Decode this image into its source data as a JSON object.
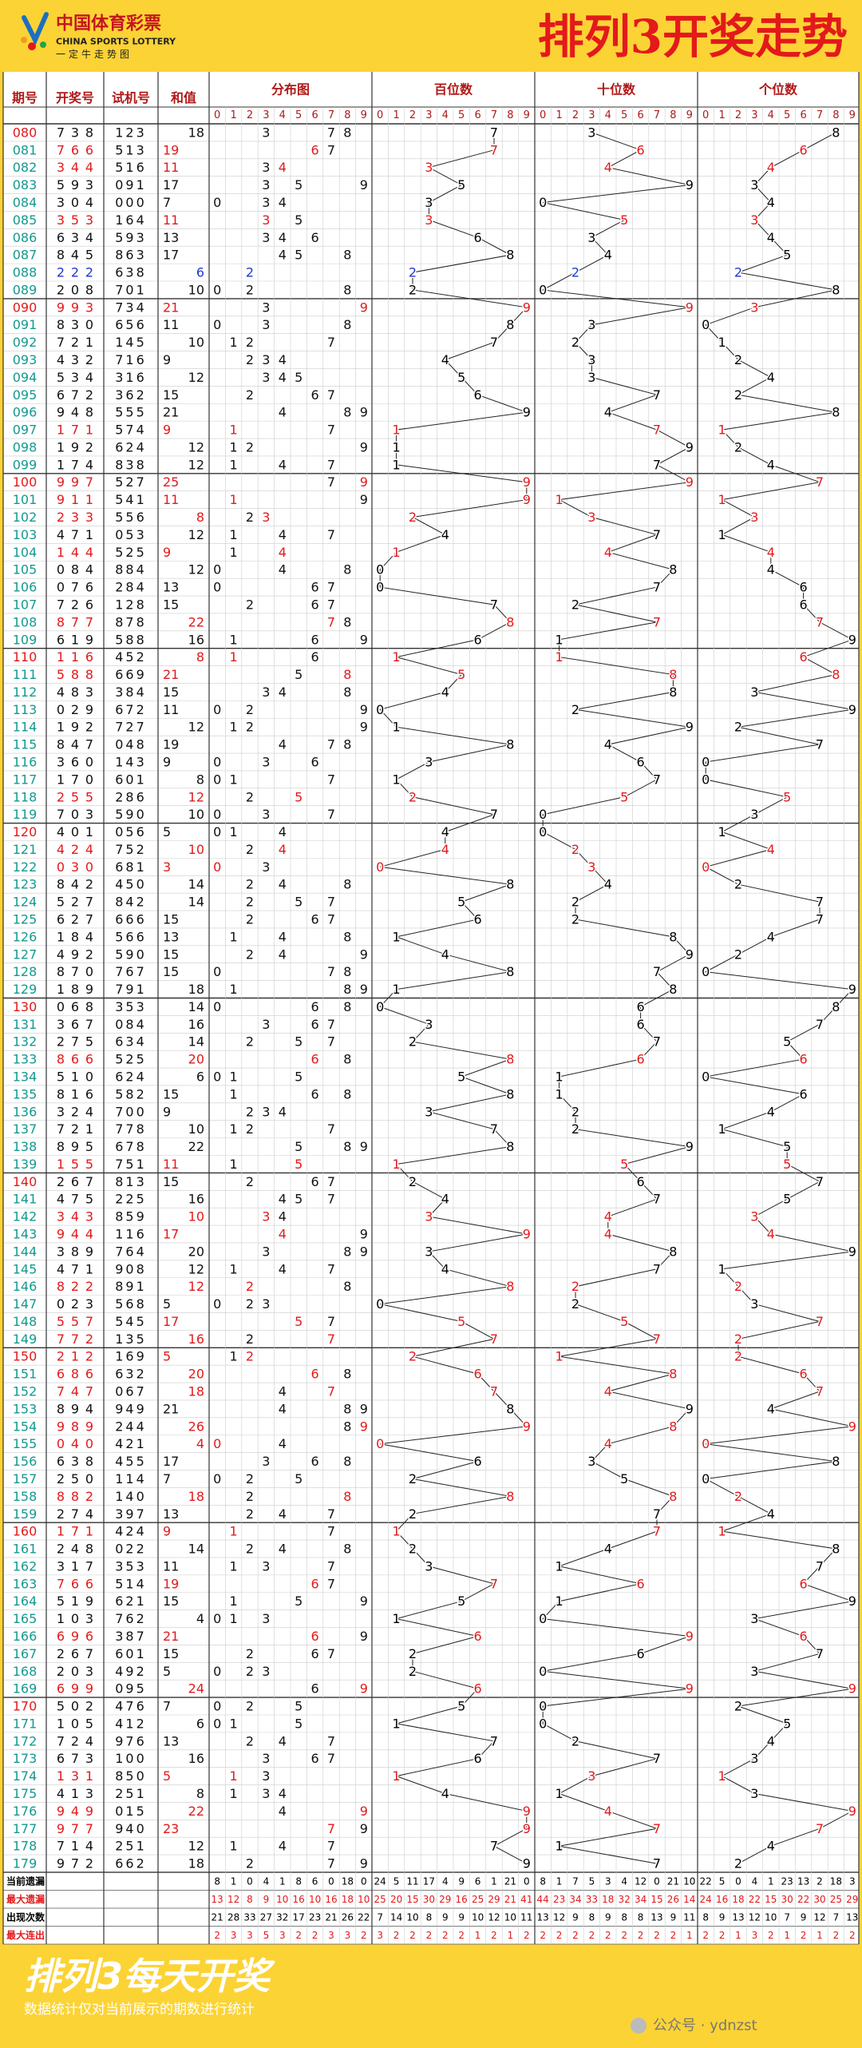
{
  "header": {
    "logo_cn": "中国体育彩票",
    "logo_en": "CHINA SPORTS LOTTERY",
    "logo_sub": "一定牛走势图",
    "title": "排列3开奖走势"
  },
  "table": {
    "columns": [
      "期号",
      "开奖号",
      "试机号",
      "和值",
      "分布图",
      "百位数",
      "十位数",
      "个位数"
    ],
    "digits": [
      0,
      1,
      2,
      3,
      4,
      5,
      6,
      7,
      8,
      9
    ],
    "rows": [
      {
        "issue": "080",
        "draw": [
          7,
          3,
          8
        ],
        "test": "123",
        "sum": 18
      },
      {
        "issue": "081",
        "draw": [
          7,
          6,
          6
        ],
        "test": "513",
        "sum": 19
      },
      {
        "issue": "082",
        "draw": [
          3,
          4,
          4
        ],
        "test": "516",
        "sum": 11
      },
      {
        "issue": "083",
        "draw": [
          5,
          9,
          3
        ],
        "test": "091",
        "sum": 17
      },
      {
        "issue": "084",
        "draw": [
          3,
          0,
          4
        ],
        "test": "000",
        "sum": 7
      },
      {
        "issue": "085",
        "draw": [
          3,
          5,
          3
        ],
        "test": "164",
        "sum": 11
      },
      {
        "issue": "086",
        "draw": [
          6,
          3,
          4
        ],
        "test": "593",
        "sum": 13
      },
      {
        "issue": "087",
        "draw": [
          8,
          4,
          5
        ],
        "test": "863",
        "sum": 17
      },
      {
        "issue": "088",
        "draw": [
          2,
          2,
          2
        ],
        "test": "638",
        "sum": 6
      },
      {
        "issue": "089",
        "draw": [
          2,
          0,
          8
        ],
        "test": "701",
        "sum": 10
      },
      {
        "issue": "090",
        "draw": [
          9,
          9,
          3
        ],
        "test": "734",
        "sum": 21
      },
      {
        "issue": "091",
        "draw": [
          8,
          3,
          0
        ],
        "test": "656",
        "sum": 11
      },
      {
        "issue": "092",
        "draw": [
          7,
          2,
          1
        ],
        "test": "145",
        "sum": 10
      },
      {
        "issue": "093",
        "draw": [
          4,
          3,
          2
        ],
        "test": "716",
        "sum": 9
      },
      {
        "issue": "094",
        "draw": [
          5,
          3,
          4
        ],
        "test": "316",
        "sum": 12
      },
      {
        "issue": "095",
        "draw": [
          6,
          7,
          2
        ],
        "test": "362",
        "sum": 15
      },
      {
        "issue": "096",
        "draw": [
          9,
          4,
          8
        ],
        "test": "555",
        "sum": 21
      },
      {
        "issue": "097",
        "draw": [
          1,
          7,
          1
        ],
        "test": "574",
        "sum": 9
      },
      {
        "issue": "098",
        "draw": [
          1,
          9,
          2
        ],
        "test": "624",
        "sum": 12
      },
      {
        "issue": "099",
        "draw": [
          1,
          7,
          4
        ],
        "test": "838",
        "sum": 12
      },
      {
        "issue": "100",
        "draw": [
          9,
          9,
          7
        ],
        "test": "527",
        "sum": 25
      },
      {
        "issue": "101",
        "draw": [
          9,
          1,
          1
        ],
        "test": "541",
        "sum": 11
      },
      {
        "issue": "102",
        "draw": [
          2,
          3,
          3
        ],
        "test": "556",
        "sum": 8
      },
      {
        "issue": "103",
        "draw": [
          4,
          7,
          1
        ],
        "test": "053",
        "sum": 12
      },
      {
        "issue": "104",
        "draw": [
          1,
          4,
          4
        ],
        "test": "525",
        "sum": 9
      },
      {
        "issue": "105",
        "draw": [
          0,
          8,
          4
        ],
        "test": "884",
        "sum": 12
      },
      {
        "issue": "106",
        "draw": [
          0,
          7,
          6
        ],
        "test": "284",
        "sum": 13
      },
      {
        "issue": "107",
        "draw": [
          7,
          2,
          6
        ],
        "test": "128",
        "sum": 15
      },
      {
        "issue": "108",
        "draw": [
          8,
          7,
          7
        ],
        "test": "878",
        "sum": 22
      },
      {
        "issue": "109",
        "draw": [
          6,
          1,
          9
        ],
        "test": "588",
        "sum": 16
      },
      {
        "issue": "110",
        "draw": [
          1,
          1,
          6
        ],
        "test": "452",
        "sum": 8
      },
      {
        "issue": "111",
        "draw": [
          5,
          8,
          8
        ],
        "test": "669",
        "sum": 21
      },
      {
        "issue": "112",
        "draw": [
          4,
          8,
          3
        ],
        "test": "384",
        "sum": 15
      },
      {
        "issue": "113",
        "draw": [
          0,
          2,
          9
        ],
        "test": "672",
        "sum": 11
      },
      {
        "issue": "114",
        "draw": [
          1,
          9,
          2
        ],
        "test": "727",
        "sum": 12
      },
      {
        "issue": "115",
        "draw": [
          8,
          4,
          7
        ],
        "test": "048",
        "sum": 19
      },
      {
        "issue": "116",
        "draw": [
          3,
          6,
          0
        ],
        "test": "143",
        "sum": 9
      },
      {
        "issue": "117",
        "draw": [
          1,
          7,
          0
        ],
        "test": "601",
        "sum": 8
      },
      {
        "issue": "118",
        "draw": [
          2,
          5,
          5
        ],
        "test": "286",
        "sum": 12
      },
      {
        "issue": "119",
        "draw": [
          7,
          0,
          3
        ],
        "test": "590",
        "sum": 10
      },
      {
        "issue": "120",
        "draw": [
          4,
          0,
          1
        ],
        "test": "056",
        "sum": 5
      },
      {
        "issue": "121",
        "draw": [
          4,
          2,
          4
        ],
        "test": "752",
        "sum": 10
      },
      {
        "issue": "122",
        "draw": [
          0,
          3,
          0
        ],
        "test": "681",
        "sum": 3
      },
      {
        "issue": "123",
        "draw": [
          8,
          4,
          2
        ],
        "test": "450",
        "sum": 14
      },
      {
        "issue": "124",
        "draw": [
          5,
          2,
          7
        ],
        "test": "842",
        "sum": 14
      },
      {
        "issue": "125",
        "draw": [
          6,
          2,
          7
        ],
        "test": "666",
        "sum": 15
      },
      {
        "issue": "126",
        "draw": [
          1,
          8,
          4
        ],
        "test": "566",
        "sum": 13
      },
      {
        "issue": "127",
        "draw": [
          4,
          9,
          2
        ],
        "test": "590",
        "sum": 15
      },
      {
        "issue": "128",
        "draw": [
          8,
          7,
          0
        ],
        "test": "767",
        "sum": 15
      },
      {
        "issue": "129",
        "draw": [
          1,
          8,
          9
        ],
        "test": "791",
        "sum": 18
      },
      {
        "issue": "130",
        "draw": [
          0,
          6,
          8
        ],
        "test": "353",
        "sum": 14
      },
      {
        "issue": "131",
        "draw": [
          3,
          6,
          7
        ],
        "test": "084",
        "sum": 16
      },
      {
        "issue": "132",
        "draw": [
          2,
          7,
          5
        ],
        "test": "634",
        "sum": 14
      },
      {
        "issue": "133",
        "draw": [
          8,
          6,
          6
        ],
        "test": "525",
        "sum": 20
      },
      {
        "issue": "134",
        "draw": [
          5,
          1,
          0
        ],
        "test": "624",
        "sum": 6
      },
      {
        "issue": "135",
        "draw": [
          8,
          1,
          6
        ],
        "test": "582",
        "sum": 15
      },
      {
        "issue": "136",
        "draw": [
          3,
          2,
          4
        ],
        "test": "700",
        "sum": 9
      },
      {
        "issue": "137",
        "draw": [
          7,
          2,
          1
        ],
        "test": "778",
        "sum": 10
      },
      {
        "issue": "138",
        "draw": [
          8,
          9,
          5
        ],
        "test": "678",
        "sum": 22
      },
      {
        "issue": "139",
        "draw": [
          1,
          5,
          5
        ],
        "test": "751",
        "sum": 11
      },
      {
        "issue": "140",
        "draw": [
          2,
          6,
          7
        ],
        "test": "813",
        "sum": 15
      },
      {
        "issue": "141",
        "draw": [
          4,
          7,
          5
        ],
        "test": "225",
        "sum": 16
      },
      {
        "issue": "142",
        "draw": [
          3,
          4,
          3
        ],
        "test": "859",
        "sum": 10
      },
      {
        "issue": "143",
        "draw": [
          9,
          4,
          4
        ],
        "test": "116",
        "sum": 17
      },
      {
        "issue": "144",
        "draw": [
          3,
          8,
          9
        ],
        "test": "764",
        "sum": 20
      },
      {
        "issue": "145",
        "draw": [
          4,
          7,
          1
        ],
        "test": "908",
        "sum": 12
      },
      {
        "issue": "146",
        "draw": [
          8,
          2,
          2
        ],
        "test": "891",
        "sum": 12
      },
      {
        "issue": "147",
        "draw": [
          0,
          2,
          3
        ],
        "test": "568",
        "sum": 5
      },
      {
        "issue": "148",
        "draw": [
          5,
          5,
          7
        ],
        "test": "545",
        "sum": 17
      },
      {
        "issue": "149",
        "draw": [
          7,
          7,
          2
        ],
        "test": "135",
        "sum": 16
      },
      {
        "issue": "150",
        "draw": [
          2,
          1,
          2
        ],
        "test": "169",
        "sum": 5
      },
      {
        "issue": "151",
        "draw": [
          6,
          8,
          6
        ],
        "test": "632",
        "sum": 20
      },
      {
        "issue": "152",
        "draw": [
          7,
          4,
          7
        ],
        "test": "067",
        "sum": 18
      },
      {
        "issue": "153",
        "draw": [
          8,
          9,
          4
        ],
        "test": "949",
        "sum": 21
      },
      {
        "issue": "154",
        "draw": [
          9,
          8,
          9
        ],
        "test": "244",
        "sum": 26
      },
      {
        "issue": "155",
        "draw": [
          0,
          4,
          0
        ],
        "test": "421",
        "sum": 4
      },
      {
        "issue": "156",
        "draw": [
          6,
          3,
          8
        ],
        "test": "455",
        "sum": 17
      },
      {
        "issue": "157",
        "draw": [
          2,
          5,
          0
        ],
        "test": "114",
        "sum": 7
      },
      {
        "issue": "158",
        "draw": [
          8,
          8,
          2
        ],
        "test": "140",
        "sum": 18
      },
      {
        "issue": "159",
        "draw": [
          2,
          7,
          4
        ],
        "test": "397",
        "sum": 13
      },
      {
        "issue": "160",
        "draw": [
          1,
          7,
          1
        ],
        "test": "424",
        "sum": 9
      },
      {
        "issue": "161",
        "draw": [
          2,
          4,
          8
        ],
        "test": "022",
        "sum": 14
      },
      {
        "issue": "162",
        "draw": [
          3,
          1,
          7
        ],
        "test": "353",
        "sum": 11
      },
      {
        "issue": "163",
        "draw": [
          7,
          6,
          6
        ],
        "test": "514",
        "sum": 19
      },
      {
        "issue": "164",
        "draw": [
          5,
          1,
          9
        ],
        "test": "621",
        "sum": 15
      },
      {
        "issue": "165",
        "draw": [
          1,
          0,
          3
        ],
        "test": "762",
        "sum": 4
      },
      {
        "issue": "166",
        "draw": [
          6,
          9,
          6
        ],
        "test": "387",
        "sum": 21
      },
      {
        "issue": "167",
        "draw": [
          2,
          6,
          7
        ],
        "test": "601",
        "sum": 15
      },
      {
        "issue": "168",
        "draw": [
          2,
          0,
          3
        ],
        "test": "492",
        "sum": 5
      },
      {
        "issue": "169",
        "draw": [
          6,
          9,
          9
        ],
        "test": "095",
        "sum": 24
      },
      {
        "issue": "170",
        "draw": [
          5,
          0,
          2
        ],
        "test": "476",
        "sum": 7
      },
      {
        "issue": "171",
        "draw": [
          1,
          0,
          5
        ],
        "test": "412",
        "sum": 6
      },
      {
        "issue": "172",
        "draw": [
          7,
          2,
          4
        ],
        "test": "976",
        "sum": 13
      },
      {
        "issue": "173",
        "draw": [
          6,
          7,
          3
        ],
        "test": "100",
        "sum": 16
      },
      {
        "issue": "174",
        "draw": [
          1,
          3,
          1
        ],
        "test": "850",
        "sum": 5
      },
      {
        "issue": "175",
        "draw": [
          4,
          1,
          3
        ],
        "test": "251",
        "sum": 8
      },
      {
        "issue": "176",
        "draw": [
          9,
          4,
          9
        ],
        "test": "015",
        "sum": 22
      },
      {
        "issue": "177",
        "draw": [
          9,
          7,
          7
        ],
        "test": "940",
        "sum": 23
      },
      {
        "issue": "178",
        "draw": [
          7,
          1,
          4
        ],
        "test": "251",
        "sum": 12
      },
      {
        "issue": "179",
        "draw": [
          9,
          7,
          2
        ],
        "test": "662",
        "sum": 18
      }
    ],
    "stats": [
      {
        "label": "当前遗漏",
        "distribution": [
          8,
          1,
          0,
          4,
          1,
          8,
          6,
          0,
          18,
          0
        ],
        "hundreds": [
          24,
          5,
          11,
          17,
          4,
          9,
          6,
          1,
          21,
          0
        ],
        "tens": [
          8,
          1,
          7,
          5,
          3,
          4,
          12,
          0,
          21,
          10
        ],
        "units": [
          22,
          5,
          0,
          4,
          1,
          23,
          13,
          2,
          18,
          3
        ]
      },
      {
        "label": "最大遗漏",
        "distribution": [
          13,
          12,
          8,
          9,
          10,
          16,
          10,
          16,
          18,
          10
        ],
        "hundreds": [
          25,
          20,
          15,
          30,
          29,
          16,
          25,
          29,
          21,
          41
        ],
        "tens": [
          44,
          23,
          34,
          33,
          18,
          32,
          34,
          15,
          26,
          14
        ],
        "units": [
          24,
          16,
          18,
          22,
          15,
          30,
          22,
          30,
          25,
          29
        ]
      },
      {
        "label": "出现次数",
        "distribution": [
          21,
          28,
          33,
          27,
          32,
          17,
          23,
          21,
          26,
          22
        ],
        "hundreds": [
          7,
          14,
          10,
          8,
          9,
          9,
          10,
          12,
          10,
          11
        ],
        "tens": [
          13,
          12,
          9,
          8,
          9,
          8,
          8,
          13,
          9,
          11
        ],
        "units": [
          8,
          9,
          13,
          12,
          10,
          7,
          9,
          12,
          7,
          13
        ]
      },
      {
        "label": "最大连出",
        "distribution": [
          2,
          3,
          3,
          5,
          3,
          2,
          2,
          3,
          3,
          2
        ],
        "hundreds": [
          3,
          2,
          2,
          2,
          2,
          2,
          1,
          2,
          1,
          2
        ],
        "tens": [
          2,
          2,
          2,
          2,
          2,
          2,
          2,
          2,
          2,
          1
        ],
        "units": [
          2,
          2,
          1,
          3,
          2,
          1,
          2,
          1,
          2,
          2
        ]
      }
    ]
  },
  "footer": {
    "title": "排列3每天开奖",
    "note": "数据统计仅对当前展示的期数进行统计",
    "watermark": "公众号 · ydnzst"
  }
}
